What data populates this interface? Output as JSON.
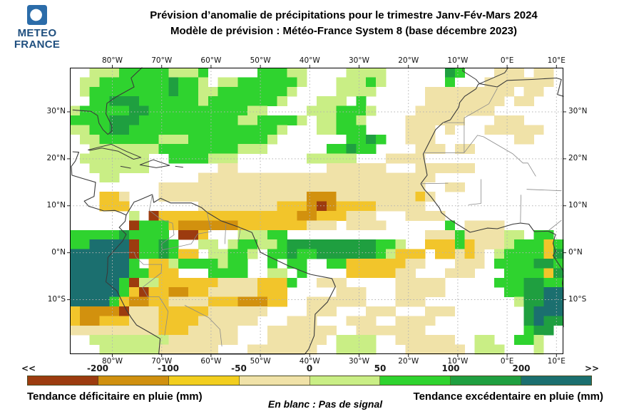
{
  "header": {
    "logo": {
      "line1": "METEO",
      "line2": "FRANCE",
      "brand_blue": "#2b6ca9",
      "text_blue": "#1f4f7f"
    },
    "title_line1": "Prévision d’anomalie de précipitations pour le trimestre Janv-Fév-Mars 2024",
    "title_line2": "Modèle de prévision : Météo-France System 8 (base décembre 2023)"
  },
  "map": {
    "lon_ticks": [
      {
        "label": "80°W",
        "lon": -80
      },
      {
        "label": "70°W",
        "lon": -70
      },
      {
        "label": "60°W",
        "lon": -60
      },
      {
        "label": "50°W",
        "lon": -50
      },
      {
        "label": "40°W",
        "lon": -40
      },
      {
        "label": "30°W",
        "lon": -30
      },
      {
        "label": "20°W",
        "lon": -20
      },
      {
        "label": "10°W",
        "lon": -10
      },
      {
        "label": "0°E",
        "lon": 0
      },
      {
        "label": "10°E",
        "lon": 10
      }
    ],
    "lat_ticks": [
      {
        "label": "30°N",
        "lat": 30
      },
      {
        "label": "20°N",
        "lat": 20
      },
      {
        "label": "10°N",
        "lat": 10
      },
      {
        "label": "0°N",
        "lat": 0
      },
      {
        "label": "10°S",
        "lat": -10
      }
    ],
    "extent": {
      "lon_min": -88.6,
      "lon_max": 11.4,
      "lat_min": -21.6,
      "lat_max": 39.4
    },
    "palette": {
      "1": "#f0e2a8",
      "2": "#f2c52b",
      "3": "#d2910e",
      "4": "#9c3b0f",
      "5": "#c9ee85",
      "6": "#2fd32f",
      "7": "#1f9f40",
      "8": "#1b6f6f"
    },
    "grid": {
      "cols": 50,
      "rows": 30,
      "cells": [
        "..555666665556.....66655....5555......76...111.11.",
        ".5566666667665.556666665...55565......6...1111111.",
        ".5666666667665566666665....5555.....111111111.11..",
        "..66777666666566666665...555.6......11111111.11...",
        "56666677666666666655....5556665....11111111.......",
        "666677766666666665566665.55665....111111...111....",
        "5566776666666666666665...55666....111.1...111111..",
        ".55666666555666666665.......6676..111........11...",
        "..555555566666666555......66766....111.11.........",
        ".5555555..6666555.......55555...1111..............",
        "..555555.......11.........111111...111111.........",
        "...55........111111111111111111111111.............",
        ".........111111111111111111111111111..11..........",
        "...221...1111111111111113331111111121.............",
        "...222.......11111111222343222211111..............",
        "......5.42222222222222233222111...1111............",
        "......466623333332222222111.1111......6.1111......",
        "6666676666.442...55566..............1116111155.66.",
        "66888846676..55.566556777777777665..22262111566626",
        "8888884667622.55665.6676677777765222.22121.5666627",
        "8888886.2256666566..6.66..6622222211...111.6666776",
        "88888866222...6666..55.6....2222211...111...666627",
        "88888645522222211112226..111.....11111.....6667766",
        "8888862422332211111222.....111...11111......667788",
        "8888623322111122233322..111111...111.........57788",
        "23333411122222111111....111...111...111.......7888",
        "2332221112222111111...111...111..1111.........7877",
        "11111111122211111...1111111..1111111..........677.",
        "..555555551111111...111111.5555..111111..55..665..",
        "...555555111111...1111111..5555...111111.555...5.."
      ]
    }
  },
  "colorbar": {
    "left_arrow": "<<",
    "right_arrow": ">>",
    "tick_labels": [
      "-200",
      "-100",
      "-50",
      "0",
      "50",
      "100",
      "200"
    ],
    "colors": [
      "#9c3b0f",
      "#d0900f",
      "#f2ce1e",
      "#f0e2a8",
      "#c9ee85",
      "#2fd32f",
      "#1f9f40",
      "#1b6f6f"
    ],
    "caption_deficit": "Tendance déficitaire en pluie (mm)",
    "caption_nosignal": "En blanc : Pas de signal",
    "caption_excess": "Tendance excédentaire en pluie (mm)"
  }
}
